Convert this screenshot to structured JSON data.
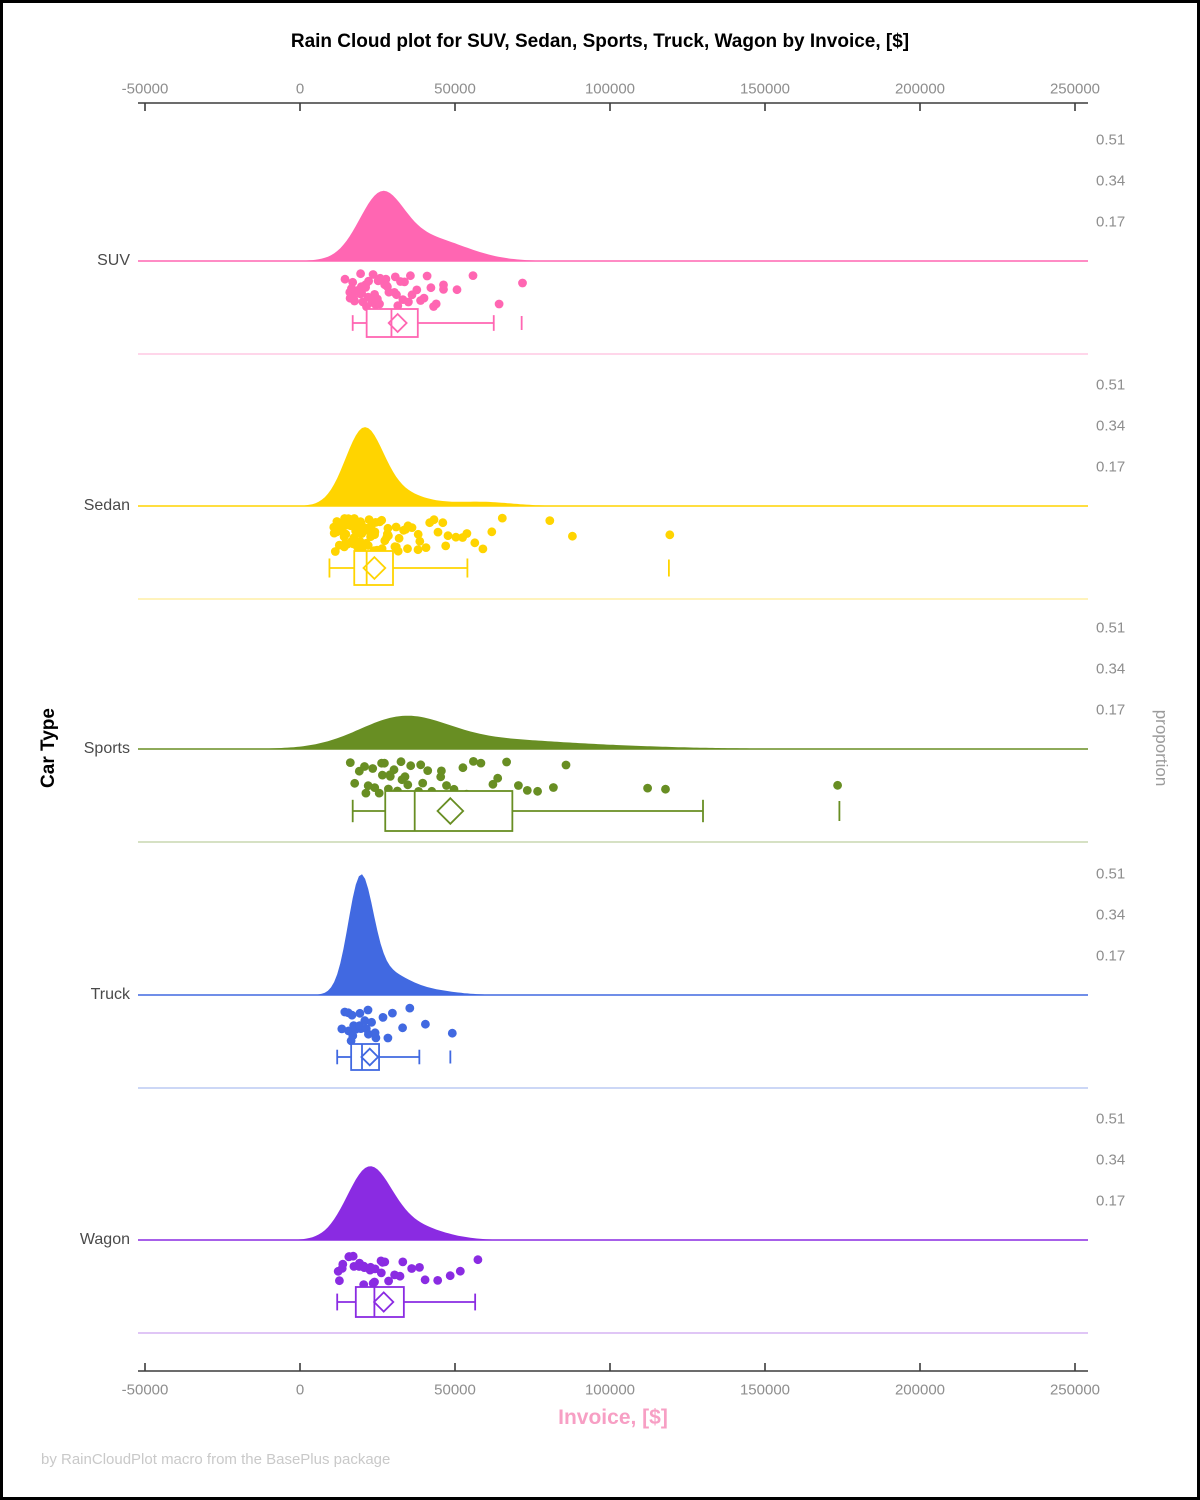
{
  "title": "Rain Cloud plot for SUV, Sedan, Sports, Truck, Wagon by Invoice, [$]",
  "footer": "by RainCloudPlot macro from the BasePlus package",
  "x_axis": {
    "label": "Invoice, [$]",
    "tick_labels": [
      "-50000",
      "0",
      "50000",
      "100000",
      "150000",
      "200000",
      "250000"
    ],
    "tick_values": [
      -50000,
      0,
      50000,
      100000,
      150000,
      200000,
      250000
    ],
    "range": [
      -53000,
      253000
    ]
  },
  "y_axis": {
    "label": "Car Type"
  },
  "right_axis": {
    "label": "proportion",
    "tick_labels": [
      "0.51",
      "0.34",
      "0.17"
    ],
    "tick_values": [
      0.51,
      0.34,
      0.17
    ]
  },
  "chart_data": {
    "type": "raincloud (half-violin density + jittered strip points + box plot per category)",
    "x_unit": "USD",
    "legend_position": "none",
    "grid": false,
    "proportion_axis_step": 0.17,
    "categories": [
      {
        "name": "SUV",
        "color": "#FF66B2",
        "density_mixture": [
          {
            "mu": 26000,
            "sigma": 7000,
            "w": 0.24
          },
          {
            "mu": 40000,
            "sigma": 13000,
            "w": 0.1
          }
        ],
        "box": {
          "whisker_low": 17000,
          "q1": 21500,
          "median": 29500,
          "mean": 31500,
          "q3": 38000,
          "whisker_high": 62500,
          "outliers": [
            71500
          ]
        },
        "points": [
          15000,
          16000,
          16500,
          17000,
          17200,
          17500,
          18000,
          18200,
          18500,
          19000,
          19200,
          19500,
          20000,
          20300,
          20600,
          21000,
          21300,
          21700,
          22000,
          22400,
          22800,
          23200,
          23600,
          24000,
          24500,
          25000,
          25400,
          25800,
          26300,
          26800,
          27300,
          27800,
          28400,
          29000,
          29600,
          30200,
          30900,
          31600,
          32300,
          33000,
          33800,
          34600,
          35500,
          36400,
          37300,
          38300,
          39300,
          40400,
          41500,
          42700,
          44000,
          45500,
          47000,
          50000,
          56000,
          65000,
          72000
        ]
      },
      {
        "name": "Sedan",
        "color": "#FFD400",
        "density_mixture": [
          {
            "mu": 20500,
            "sigma": 6000,
            "w": 0.3
          },
          {
            "mu": 30000,
            "sigma": 9000,
            "w": 0.06
          },
          {
            "mu": 58000,
            "sigma": 10000,
            "w": 0.018
          }
        ],
        "box": {
          "whisker_low": 9500,
          "q1": 17500,
          "median": 21500,
          "mean": 24000,
          "q3": 30000,
          "whisker_high": 54000,
          "outliers": [
            119000
          ]
        },
        "points": [
          10000,
          10800,
          11300,
          11800,
          12200,
          12500,
          12800,
          13100,
          13400,
          13700,
          14000,
          14200,
          14400,
          14600,
          14800,
          15000,
          15200,
          15400,
          15600,
          15800,
          16000,
          16200,
          16400,
          16600,
          16800,
          17000,
          17200,
          17400,
          17600,
          17800,
          18000,
          18200,
          18400,
          18600,
          18800,
          19000,
          19200,
          19400,
          19600,
          19800,
          20000,
          20300,
          20600,
          20900,
          21200,
          21500,
          21800,
          22100,
          22400,
          22700,
          23000,
          23400,
          23800,
          24200,
          24600,
          25000,
          25500,
          26000,
          26500,
          27000,
          27500,
          28000,
          28600,
          29200,
          29800,
          30400,
          31000,
          31700,
          32400,
          33100,
          33900,
          34700,
          35500,
          36400,
          37300,
          38300,
          39300,
          40400,
          41600,
          42800,
          44100,
          45500,
          47000,
          48600,
          50300,
          52100,
          54000,
          56000,
          58500,
          61000,
          65000,
          80000,
          88000,
          119000
        ]
      },
      {
        "name": "Sports",
        "color": "#688E23",
        "density_mixture": [
          {
            "mu": 33000,
            "sigma": 14000,
            "w": 0.115
          },
          {
            "mu": 55000,
            "sigma": 25000,
            "w": 0.035
          },
          {
            "mu": 90000,
            "sigma": 30000,
            "w": 0.012
          }
        ],
        "box": {
          "whisker_low": 17000,
          "q1": 27500,
          "median": 37000,
          "mean": 48500,
          "q3": 68500,
          "whisker_high": 130000,
          "outliers": [
            174000
          ]
        },
        "points": [
          17000,
          18500,
          20000,
          21000,
          22000,
          22800,
          23500,
          24200,
          25000,
          25700,
          26400,
          27100,
          27800,
          28600,
          29400,
          30200,
          31000,
          32000,
          33000,
          34000,
          35000,
          36200,
          37400,
          38600,
          40000,
          41500,
          43000,
          44600,
          46300,
          48000,
          50000,
          52000,
          54200,
          56500,
          59000,
          61500,
          64000,
          67000,
          70000,
          73500,
          77000,
          81000,
          85000,
          113000,
          118000,
          174000
        ]
      },
      {
        "name": "Truck",
        "color": "#4169E1",
        "density_mixture": [
          {
            "mu": 19500,
            "sigma": 4000,
            "w": 0.46
          },
          {
            "mu": 27000,
            "sigma": 7000,
            "w": 0.09
          },
          {
            "mu": 40000,
            "sigma": 9000,
            "w": 0.022
          }
        ],
        "box": {
          "whisker_low": 12000,
          "q1": 16500,
          "median": 20000,
          "mean": 22500,
          "q3": 25500,
          "whisker_high": 38500,
          "outliers": [
            48500
          ]
        },
        "points": [
          13000,
          14000,
          15000,
          16000,
          16500,
          17000,
          17500,
          18000,
          18500,
          19000,
          19500,
          20000,
          20500,
          21000,
          21500,
          22000,
          23000,
          24000,
          25000,
          26500,
          28000,
          30000,
          33000,
          36000,
          40000,
          49000
        ]
      },
      {
        "name": "Wagon",
        "color": "#8A2BE2",
        "density_mixture": [
          {
            "mu": 22000,
            "sigma": 7000,
            "w": 0.27
          },
          {
            "mu": 33000,
            "sigma": 11000,
            "w": 0.07
          }
        ],
        "box": {
          "whisker_low": 12000,
          "q1": 18000,
          "median": 24000,
          "mean": 27000,
          "q3": 33500,
          "whisker_high": 56500,
          "outliers": []
        },
        "points": [
          12000,
          13000,
          13500,
          14200,
          15000,
          16000,
          17000,
          18000,
          18600,
          19200,
          19800,
          20400,
          21000,
          21700,
          22400,
          23100,
          23800,
          24600,
          25400,
          26200,
          27000,
          28000,
          29000,
          30500,
          32000,
          33500,
          35500,
          38000,
          41000,
          44500,
          48000,
          52000,
          57000
        ]
      }
    ]
  }
}
